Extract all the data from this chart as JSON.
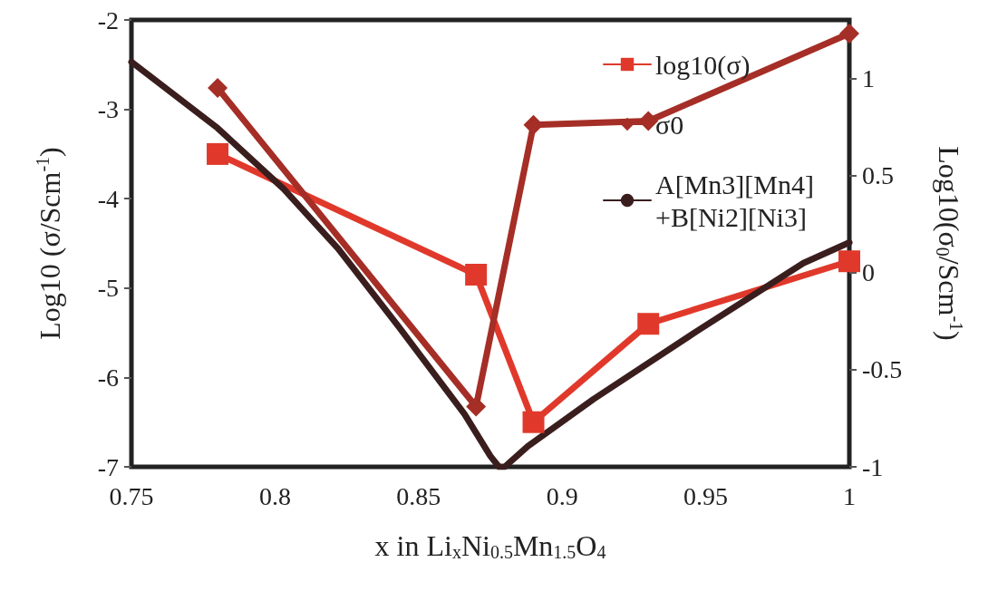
{
  "chart_data": {
    "type": "line",
    "xlabel": "x in Li$_{x}$Ni$_{0.5}$Mn$_{1.5}$O$_{4}$",
    "ylabel": "Log10 (σ/Scm$^{-1}$)",
    "y2label": "Log10(σ$_{0}$/Scm$^{-1}$)",
    "xlim": [
      0.75,
      1
    ],
    "xticks": [
      0.75,
      0.8,
      0.85,
      0.9,
      0.95,
      1
    ],
    "ylim": [
      -7,
      -2
    ],
    "yticks": [
      -7,
      -6,
      -5,
      -4,
      -3,
      -2
    ],
    "y2lim": [
      -1,
      1.3
    ],
    "y2ticks": [
      -1,
      -0.5,
      0,
      0.5,
      1
    ],
    "grid": false,
    "legend": "top right",
    "series": [
      {
        "name": "log10(σ)",
        "color": "#e0392b",
        "marker": "square",
        "x": [
          0.78,
          0.87,
          0.89,
          0.93,
          1.0
        ],
        "values": [
          -3.5,
          -4.85,
          -6.5,
          -5.4,
          -4.7
        ]
      },
      {
        "name": "σ0",
        "color": "#a52e26",
        "marker": "diamond",
        "axis": "y2",
        "x": [
          0.78,
          0.87,
          0.89,
          0.93,
          1.0
        ],
        "values": [
          0.95,
          -0.69,
          0.76,
          0.78,
          1.23
        ]
      },
      {
        "name": "A[Mn3][Mn4]\n+B[Ni2][Ni3]",
        "color": "#3a1e1e",
        "marker": "none",
        "x": [
          0.75,
          0.78,
          0.803,
          0.822,
          0.843,
          0.866,
          0.875,
          0.878,
          0.88,
          0.888,
          0.911,
          0.947,
          0.984,
          1.0
        ],
        "values": [
          -2.47,
          -3.21,
          -3.89,
          -4.56,
          -5.43,
          -6.41,
          -6.88,
          -7.0,
          -7.0,
          -6.77,
          -6.24,
          -5.48,
          -4.72,
          -4.49
        ]
      }
    ]
  }
}
